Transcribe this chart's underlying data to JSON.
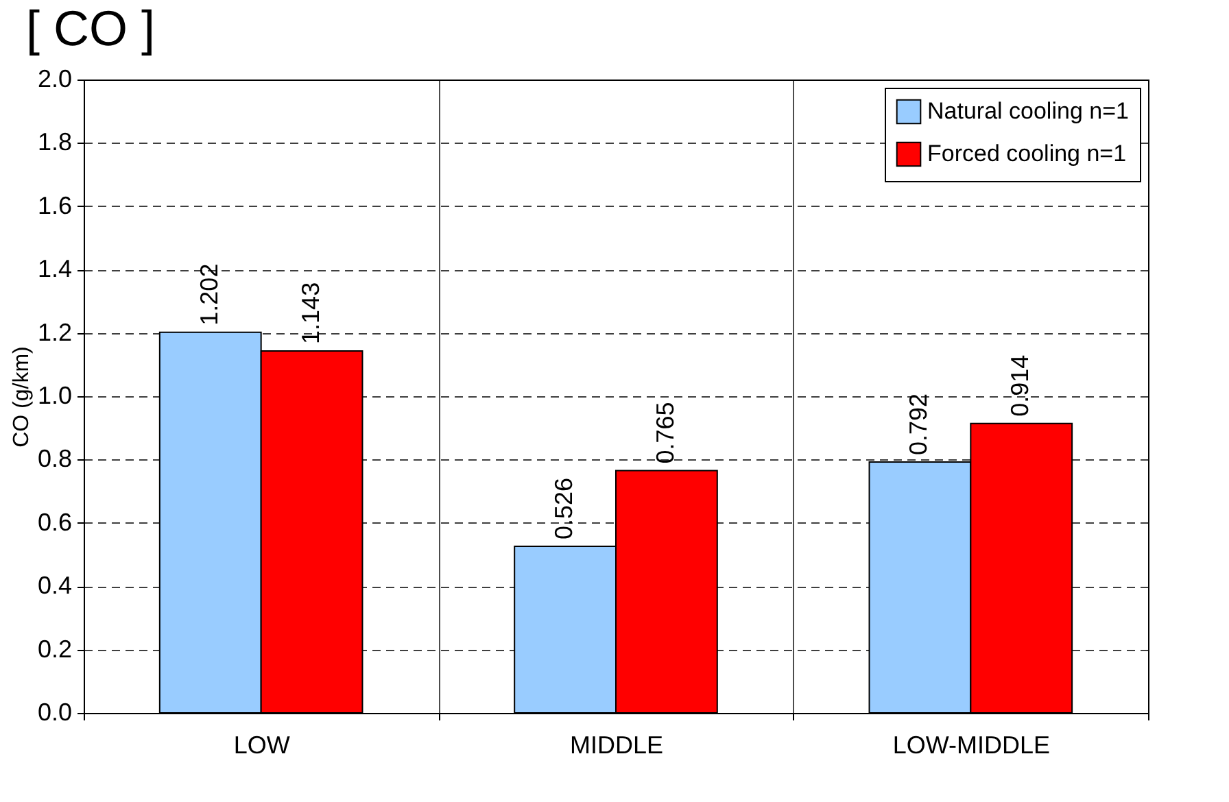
{
  "chart_data": {
    "type": "bar",
    "title": "[ CO ]",
    "ylabel": "CO (g/km)",
    "categories": [
      "LOW",
      "MIDDLE",
      "LOW-MIDDLE"
    ],
    "series": [
      {
        "name": "Natural cooling n=1",
        "color": "#99ccff",
        "values": [
          1.202,
          0.526,
          0.792
        ]
      },
      {
        "name": "Forced cooling n=1",
        "color": "#ff0000",
        "values": [
          1.143,
          0.765,
          0.914
        ]
      }
    ],
    "ylim": [
      0,
      2
    ],
    "yticks": [
      {
        "value": 0,
        "label": "0.0"
      },
      {
        "value": 0.2,
        "label": "0.2"
      },
      {
        "value": 0.4,
        "label": "0.4"
      },
      {
        "value": 0.6,
        "label": "0.6"
      },
      {
        "value": 0.8,
        "label": "0.8"
      },
      {
        "value": 1,
        "label": "1.0"
      },
      {
        "value": 1.2,
        "label": "1.2"
      },
      {
        "value": 1.4,
        "label": "1.4"
      },
      {
        "value": 1.6,
        "label": "1.6"
      },
      {
        "value": 1.8,
        "label": "1.8"
      },
      {
        "value": 2,
        "label": "2.0"
      }
    ],
    "grid": true,
    "legend": "top right",
    "data_labels": true
  }
}
